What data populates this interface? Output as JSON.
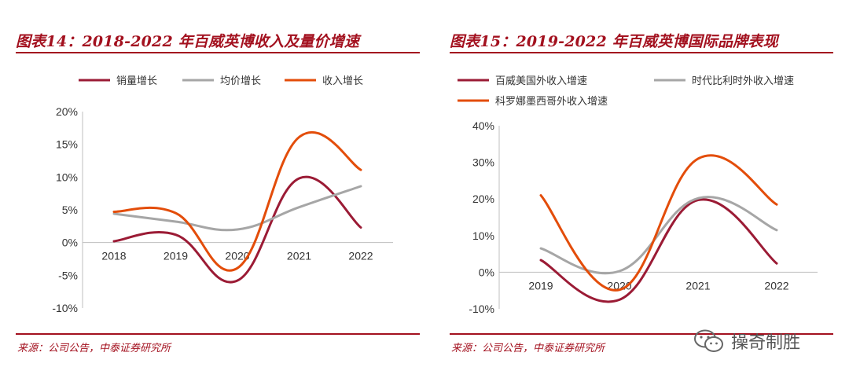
{
  "figures": [
    {
      "title": "图表14：2018-2022 年百威英博收入及量价增速",
      "source": "来源：公司公告，中泰证券研究所"
    },
    {
      "title": "图表15：2019-2022 年百威英博国际品牌表现",
      "source": "来源：公司公告，中泰证券研究所"
    }
  ],
  "watermark": {
    "text": "操奇制胜",
    "icon": "wechat-icon"
  },
  "chart_data": [
    {
      "type": "line",
      "title": "",
      "xlabel": "",
      "ylabel": "",
      "categories": [
        "2018",
        "2019",
        "2020",
        "2021",
        "2022"
      ],
      "ylim": [
        -10,
        20
      ],
      "yticks": [
        "-10%",
        "-5%",
        "0%",
        "5%",
        "10%",
        "15%",
        "20%"
      ],
      "grid": false,
      "smooth": true,
      "legend_position": "top",
      "series": [
        {
          "name": "销量增长",
          "color": "#9b1b35",
          "values": [
            0.2,
            1.2,
            -5.8,
            9.8,
            2.3
          ]
        },
        {
          "name": "均价增长",
          "color": "#a6a6a6",
          "values": [
            4.4,
            3.2,
            2.0,
            5.4,
            8.6
          ]
        },
        {
          "name": "收入增长",
          "color": "#e34d0a",
          "values": [
            4.7,
            4.5,
            -3.9,
            16.1,
            11.1
          ]
        }
      ]
    },
    {
      "type": "line",
      "title": "",
      "xlabel": "",
      "ylabel": "",
      "categories": [
        "2019",
        "2020",
        "2021",
        "2022"
      ],
      "ylim": [
        -10,
        40
      ],
      "yticks": [
        "-10%",
        "0%",
        "10%",
        "20%",
        "30%",
        "40%"
      ],
      "grid": false,
      "smooth": true,
      "legend_position": "top",
      "series": [
        {
          "name": "百威美国外收入增速",
          "color": "#9b1b35",
          "values": [
            3.3,
            -7.5,
            19.7,
            2.4
          ]
        },
        {
          "name": "时代比利时外收入增速",
          "color": "#a6a6a6",
          "values": [
            6.5,
            0.3,
            20.2,
            11.5
          ]
        },
        {
          "name": "科罗娜墨西哥外收入增速",
          "color": "#e34d0a",
          "values": [
            21.0,
            -4.8,
            31.0,
            18.5
          ]
        }
      ]
    }
  ]
}
